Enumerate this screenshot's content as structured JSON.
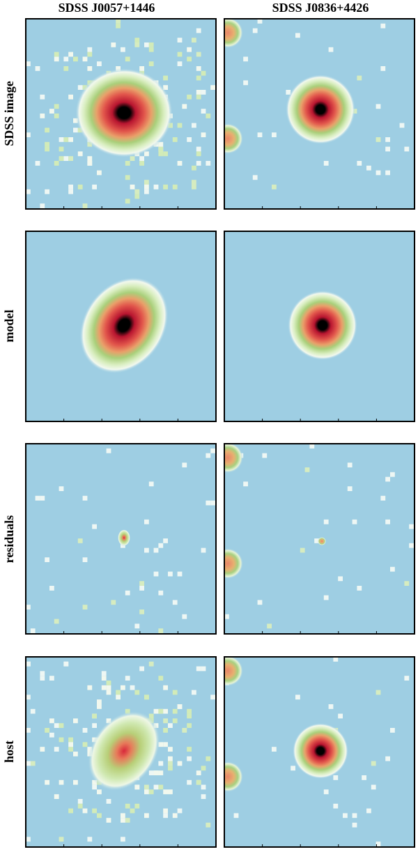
{
  "columns": [
    "SDSS J0057+1446",
    "SDSS J0836+4426"
  ],
  "rows": [
    "SDSS image",
    "model",
    "residuals",
    "host"
  ]
}
